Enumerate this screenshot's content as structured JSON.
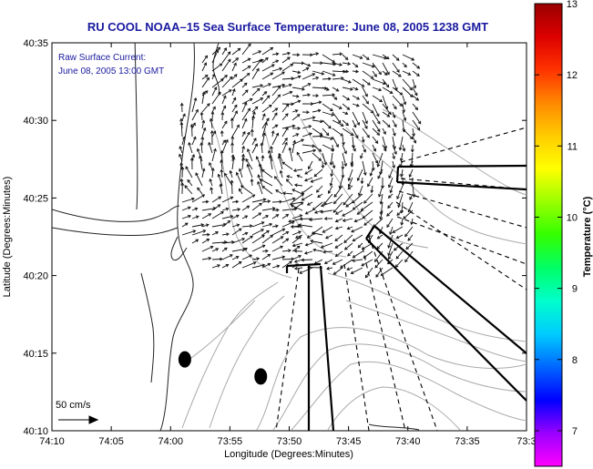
{
  "chart_data": {
    "type": "vector_field_map",
    "title": "RU COOL  NOAA–15  Sea Surface Temperature:  June 08, 2005 1238 GMT",
    "inset_text": [
      "Raw Surface Current:",
      "June 08, 2005 13:00 GMT"
    ],
    "xlabel": "Longitude (Degrees:Minutes)",
    "ylabel": "Latitude (Degrees:Minutes)",
    "x_ticks": [
      "74:10",
      "74:05",
      "74:00",
      "73:55",
      "73:50",
      "73:45",
      "73:40",
      "73:35",
      "73:3"
    ],
    "y_ticks": [
      "40:35",
      "40:30",
      "40:25",
      "40:20",
      "40:15",
      "40:10"
    ],
    "xlim_minutes_west": [
      10,
      -30
    ],
    "ylim_minutes_north": [
      10,
      35
    ],
    "scale_label": "50 cm/s",
    "colorbar": {
      "label": "Temperature (°C)",
      "ticks": [
        "13",
        "12",
        "11",
        "10",
        "9",
        "8",
        "7"
      ],
      "range": [
        6.5,
        13
      ],
      "colors": [
        "#ff00ff",
        "#9900ff",
        "#0000ff",
        "#0066ff",
        "#00ccff",
        "#00ffcc",
        "#00ff66",
        "#33ff00",
        "#99ff00",
        "#ffff00",
        "#ffcc00",
        "#ff8800",
        "#ff3300",
        "#dd0000",
        "#990000"
      ]
    },
    "markers": [
      {
        "lon_min": 58.8,
        "lat_min": 14.6
      },
      {
        "lon_min": 52.4,
        "lat_min": 13.5
      }
    ]
  }
}
